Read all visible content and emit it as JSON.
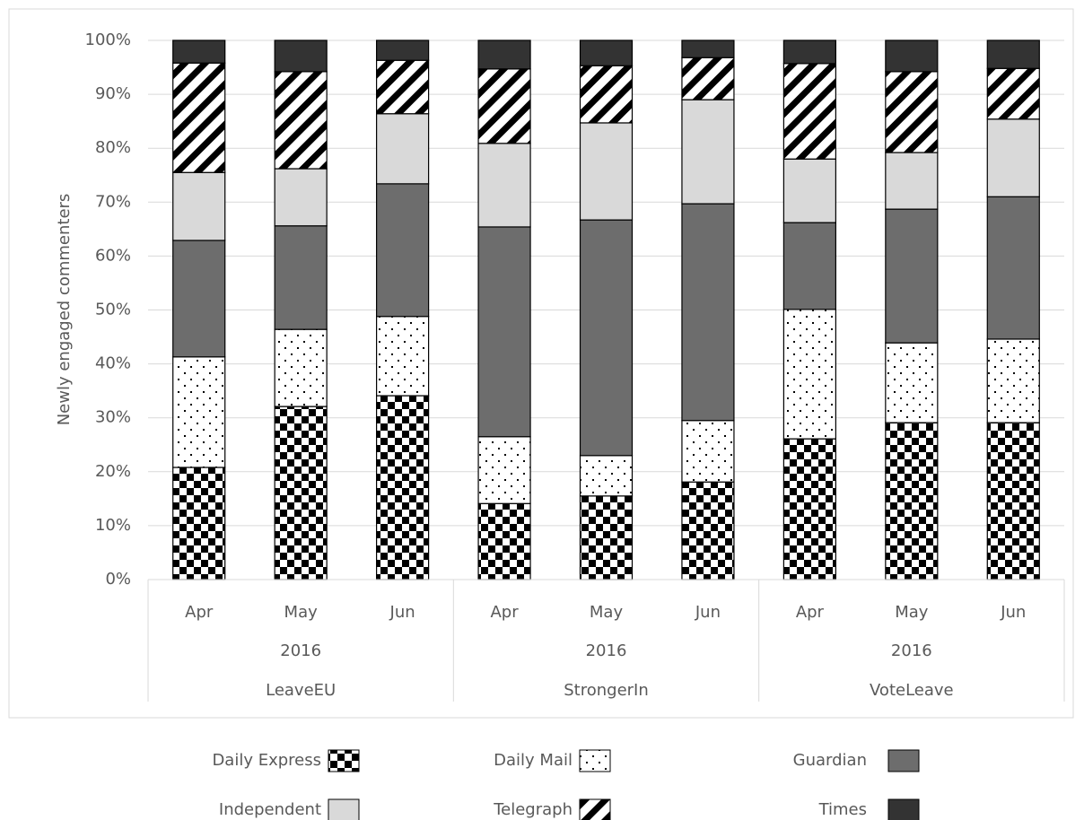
{
  "chart_data": {
    "type": "stacked_bar",
    "y_axis_label": "Newly engaged commenters",
    "categories": [
      "Apr",
      "May",
      "Jun",
      "Apr",
      "May",
      "Jun",
      "Apr",
      "May",
      "Jun"
    ],
    "category_years": [
      "2016",
      "2016",
      "2016"
    ],
    "category_groups": [
      "LeaveEU",
      "StrongerIn",
      "VoteLeave"
    ],
    "ylim": [
      0,
      100
    ],
    "yticks": [
      {
        "value": 0,
        "label": "0%"
      },
      {
        "value": 10,
        "label": "10%"
      },
      {
        "value": 20,
        "label": "20%"
      },
      {
        "value": 30,
        "label": "30%"
      },
      {
        "value": 40,
        "label": "40%"
      },
      {
        "value": 50,
        "label": "50%"
      },
      {
        "value": 60,
        "label": "60%"
      },
      {
        "value": 70,
        "label": "70%"
      },
      {
        "value": 80,
        "label": "80%"
      },
      {
        "value": 90,
        "label": "90%"
      },
      {
        "value": 100,
        "label": "100%"
      }
    ],
    "grid": true,
    "legend": "bottom",
    "series": [
      {
        "name": "Daily Express",
        "pattern": "checker",
        "color": "#000000",
        "values": [
          20.8,
          32.1,
          34.1,
          14.1,
          15.5,
          18.1,
          26.1,
          29.1,
          29.1
        ]
      },
      {
        "name": "Daily Mail",
        "pattern": "dots",
        "color": "#000000",
        "values": [
          20.5,
          14.3,
          14.7,
          12.4,
          7.5,
          11.4,
          24.0,
          14.8,
          15.5
        ]
      },
      {
        "name": "Guardian",
        "pattern": "solid",
        "color": "#6d6d6d",
        "values": [
          21.6,
          19.2,
          24.6,
          38.9,
          43.7,
          40.2,
          16.1,
          24.8,
          26.4
        ]
      },
      {
        "name": "Independent",
        "pattern": "solid",
        "color": "#d9d9d9",
        "values": [
          12.6,
          10.6,
          13.0,
          15.5,
          18.0,
          19.3,
          11.8,
          10.5,
          14.4
        ]
      },
      {
        "name": "Telegraph",
        "pattern": "diagonal",
        "color": "#000000",
        "values": [
          20.3,
          18.0,
          9.9,
          13.8,
          10.6,
          7.8,
          17.7,
          15.0,
          9.4
        ]
      },
      {
        "name": "Times",
        "pattern": "solid",
        "color": "#333333",
        "values": [
          4.2,
          5.8,
          3.7,
          5.3,
          4.7,
          3.2,
          4.3,
          5.8,
          5.2
        ]
      }
    ]
  }
}
